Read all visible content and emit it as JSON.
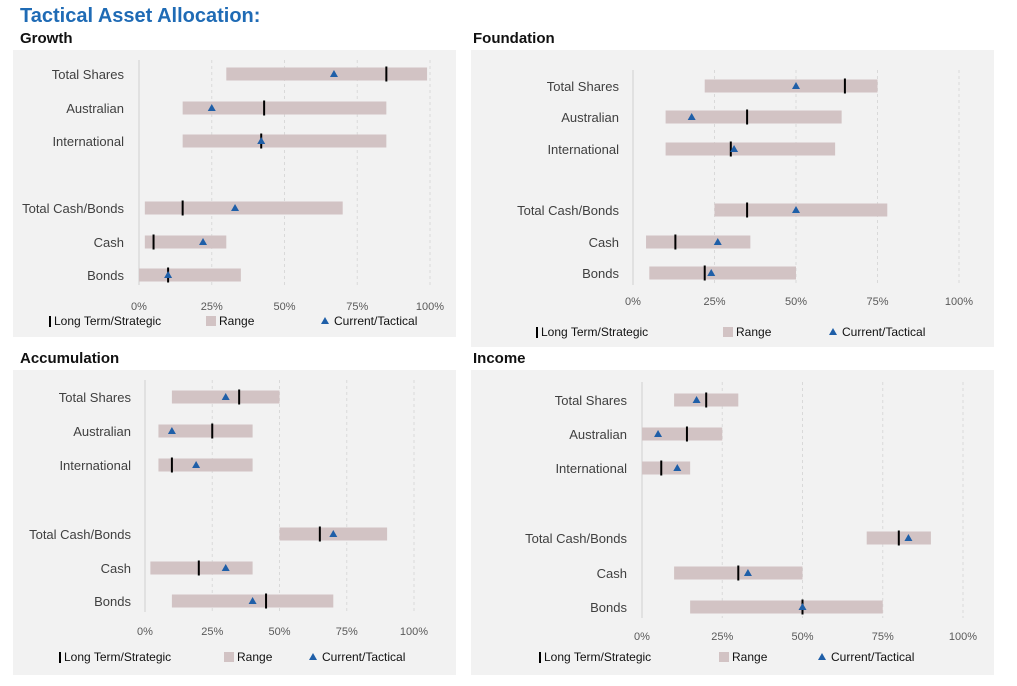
{
  "page_title": "Tactical Asset Allocation:",
  "legend": {
    "strategic": "Long Term/Strategic",
    "range": "Range",
    "tactical": "Current/Tactical"
  },
  "colors": {
    "range": "#d2c3c4",
    "strategic": "#000000",
    "tactical": "#1f5fa8",
    "title": "#1f6bb5",
    "panel_bg": "#f2f2f2"
  },
  "chart_data": [
    {
      "type": "range",
      "title": "Growth",
      "categories": [
        "Total Shares",
        "Australian",
        "International",
        "Total Cash/Bonds",
        "Cash",
        "Bonds"
      ],
      "x_ticks": [
        "0%",
        "25%",
        "50%",
        "75%",
        "100%"
      ],
      "xlim": [
        0,
        100
      ],
      "range_low": [
        30,
        15,
        15,
        2,
        2,
        0
      ],
      "range_high": [
        99,
        85,
        85,
        70,
        30,
        35
      ],
      "strategic": [
        85,
        43,
        42,
        15,
        5,
        10
      ],
      "tactical": [
        67,
        25,
        42,
        33,
        22,
        10
      ]
    },
    {
      "type": "range",
      "title": "Foundation",
      "categories": [
        "Total Shares",
        "Australian",
        "International",
        "Total Cash/Bonds",
        "Cash",
        "Bonds"
      ],
      "x_ticks": [
        "0%",
        "25%",
        "50%",
        "75%",
        "100%"
      ],
      "xlim": [
        0,
        100
      ],
      "range_low": [
        22,
        10,
        10,
        25,
        4,
        5
      ],
      "range_high": [
        75,
        64,
        62,
        78,
        36,
        50
      ],
      "strategic": [
        65,
        35,
        30,
        35,
        13,
        22
      ],
      "tactical": [
        50,
        18,
        31,
        50,
        26,
        24
      ]
    },
    {
      "type": "range",
      "title": "Accumulation",
      "categories": [
        "Total Shares",
        "Australian",
        "International",
        "Total Cash/Bonds",
        "Cash",
        "Bonds"
      ],
      "x_ticks": [
        "0%",
        "25%",
        "50%",
        "75%",
        "100%"
      ],
      "xlim": [
        0,
        100
      ],
      "range_low": [
        10,
        5,
        5,
        50,
        2,
        10
      ],
      "range_high": [
        50,
        40,
        40,
        90,
        40,
        70
      ],
      "strategic": [
        35,
        25,
        10,
        65,
        20,
        45
      ],
      "tactical": [
        30,
        10,
        19,
        70,
        30,
        40
      ]
    },
    {
      "type": "range",
      "title": "Income",
      "categories": [
        "Total Shares",
        "Australian",
        "International",
        "Total Cash/Bonds",
        "Cash",
        "Bonds"
      ],
      "x_ticks": [
        "0%",
        "25%",
        "50%",
        "75%",
        "100%"
      ],
      "xlim": [
        0,
        100
      ],
      "range_low": [
        10,
        0,
        0,
        70,
        10,
        15
      ],
      "range_high": [
        30,
        25,
        15,
        90,
        50,
        75
      ],
      "strategic": [
        20,
        14,
        6,
        80,
        30,
        50
      ],
      "tactical": [
        17,
        5,
        11,
        83,
        33,
        50
      ]
    }
  ]
}
